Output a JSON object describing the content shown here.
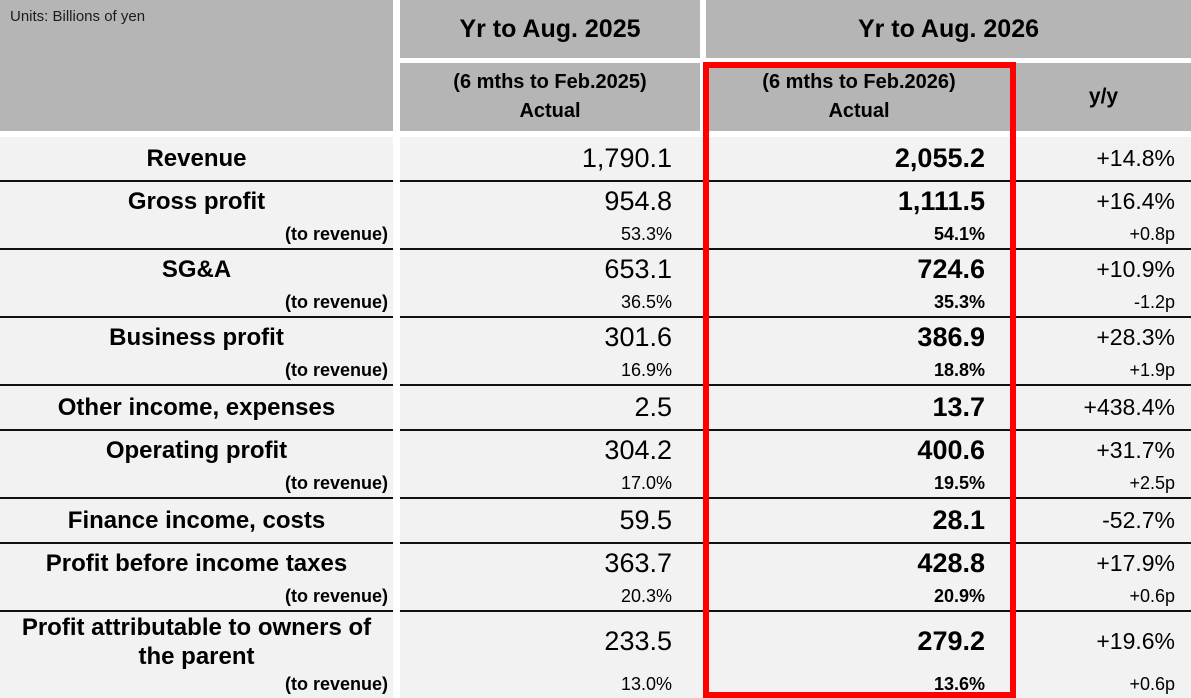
{
  "units_label": "Units: Billions of yen",
  "header": {
    "group_prior_year": "Yr to Aug. 2025",
    "group_current_year": "Yr to Aug. 2026",
    "sub_prior_line1": "(6 mths to Feb.2025)",
    "sub_prior_line2": "Actual",
    "sub_current_line1": "(6 mths to Feb.2026)",
    "sub_current_line2": "Actual",
    "yoy": "y/y"
  },
  "colors": {
    "header_bg": "#b5b5b5",
    "row_bg": "#f2f2f2",
    "separator": "#111111",
    "highlight_border": "#ff0000"
  },
  "rows": [
    {
      "label": "Revenue",
      "prior": "1,790.1",
      "current": "2,055.2",
      "yoy": "+14.8%"
    },
    {
      "label": "Gross profit",
      "prior": "954.8",
      "current": "1,111.5",
      "yoy": "+16.4%",
      "sub_label": "(to revenue)",
      "sub_prior": "53.3%",
      "sub_current": "54.1%",
      "sub_yoy": "+0.8p"
    },
    {
      "label": "SG&A",
      "prior": "653.1",
      "current": "724.6",
      "yoy": "+10.9%",
      "sub_label": "(to revenue)",
      "sub_prior": "36.5%",
      "sub_current": "35.3%",
      "sub_yoy": "-1.2p"
    },
    {
      "label": "Business profit",
      "prior": "301.6",
      "current": "386.9",
      "yoy": "+28.3%",
      "sub_label": "(to revenue)",
      "sub_prior": "16.9%",
      "sub_current": "18.8%",
      "sub_yoy": "+1.9p"
    },
    {
      "label": "Other income, expenses",
      "prior": "2.5",
      "current": "13.7",
      "yoy": "+438.4%"
    },
    {
      "label": "Operating profit",
      "prior": "304.2",
      "current": "400.6",
      "yoy": "+31.7%",
      "sub_label": "(to revenue)",
      "sub_prior": "17.0%",
      "sub_current": "19.5%",
      "sub_yoy": "+2.5p"
    },
    {
      "label": "Finance income, costs",
      "prior": "59.5",
      "current": "28.1",
      "yoy": "-52.7%"
    },
    {
      "label": "Profit before income taxes",
      "prior": "363.7",
      "current": "428.8",
      "yoy": "+17.9%",
      "sub_label": "(to revenue)",
      "sub_prior": "20.3%",
      "sub_current": "20.9%",
      "sub_yoy": "+0.6p"
    },
    {
      "label": "Profit attributable to owners of the parent",
      "prior": "233.5",
      "current": "279.2",
      "yoy": "+19.6%",
      "sub_label": "(to revenue)",
      "sub_prior": "13.0%",
      "sub_current": "13.6%",
      "sub_yoy": "+0.6p"
    }
  ]
}
